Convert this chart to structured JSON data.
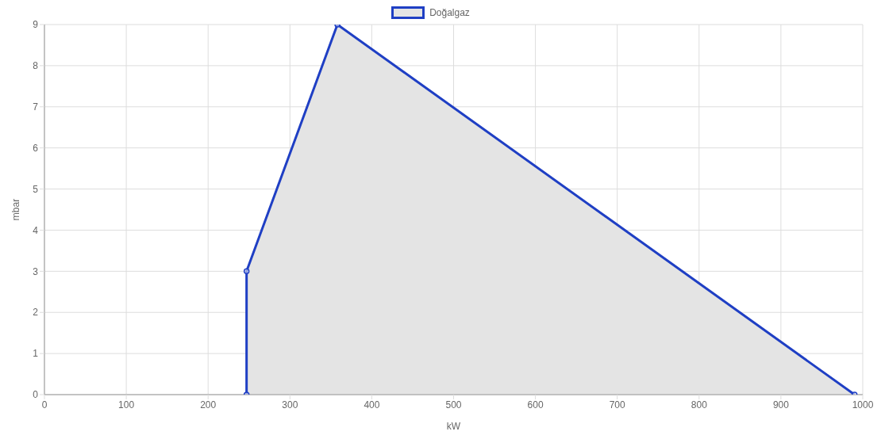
{
  "chart_data": {
    "type": "area",
    "xlabel": "kW",
    "ylabel": "mbar",
    "x": [
      247,
      247,
      358,
      990
    ],
    "series": [
      {
        "name": "Doğalgaz",
        "color": "#1f3fc4",
        "values": [
          0,
          3,
          9,
          0
        ]
      }
    ],
    "xlim": [
      0,
      1000
    ],
    "xticks": [
      0,
      100,
      200,
      300,
      400,
      500,
      600,
      700,
      800,
      900,
      1000
    ],
    "ylim": [
      0,
      9
    ],
    "yticks": [
      0,
      1,
      2,
      3,
      4,
      5,
      6,
      7,
      8,
      9
    ],
    "grid": true,
    "legend": "top",
    "marker": "circle",
    "line_style": "solid"
  }
}
